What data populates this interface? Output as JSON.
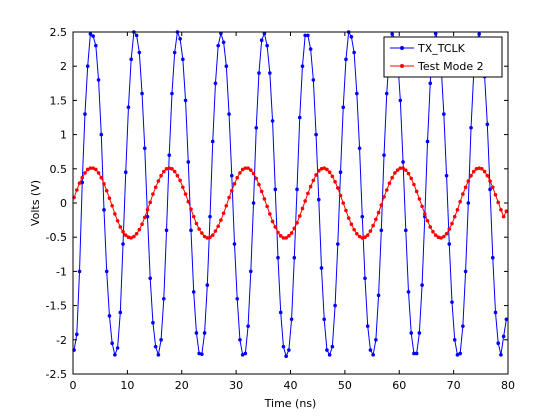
{
  "chart_data": {
    "type": "line",
    "xlabel": "Time (ns)",
    "ylabel": "Volts (V)",
    "xlim": [
      0,
      80
    ],
    "ylim": [
      -2.5,
      2.5
    ],
    "x_ticks": [
      "0",
      "10",
      "20",
      "30",
      "40",
      "50",
      "60",
      "70",
      "80"
    ],
    "y_ticks": [
      "-2.5",
      "-2",
      "-1.5",
      "-1",
      "-0.5",
      "0",
      "0.5",
      "1",
      "1.5",
      "2",
      "2.5"
    ],
    "grid": false,
    "legend_position": "top-right",
    "series": [
      {
        "name": "TX_TCLK",
        "color": "#0000ff",
        "marker": "dot",
        "x": [
          0.2,
          0.7,
          1.2,
          1.7,
          2.2,
          2.7,
          3.2,
          3.7,
          4.2,
          4.7,
          5.2,
          5.7,
          6.2,
          6.7,
          7.2,
          7.7,
          8.2,
          8.7,
          9.2,
          9.7,
          10.2,
          10.7,
          11.2,
          11.7,
          12.2,
          12.7,
          13.2,
          13.7,
          14.2,
          14.7,
          15.2,
          15.7,
          16.2,
          16.7,
          17.2,
          17.7,
          18.2,
          18.7,
          19.2,
          19.7,
          20.2,
          20.7,
          21.2,
          21.7,
          22.2,
          22.7,
          23.2,
          23.7,
          24.2,
          24.7,
          25.2,
          25.7,
          26.2,
          26.7,
          27.2,
          27.7,
          28.2,
          28.7,
          29.2,
          29.7,
          30.2,
          30.7,
          31.2,
          31.7,
          32.2,
          32.7,
          33.2,
          33.7,
          34.2,
          34.7,
          35.2,
          35.7,
          36.2,
          36.7,
          37.2,
          37.7,
          38.2,
          38.7,
          39.2,
          39.7,
          40.2,
          40.7,
          41.2,
          41.7,
          42.2,
          42.7,
          43.2,
          43.7,
          44.2,
          44.7,
          45.2,
          45.7,
          46.2,
          46.7,
          47.2,
          47.7,
          48.2,
          48.7,
          49.2,
          49.7,
          50.2,
          50.7,
          51.2,
          51.7,
          52.2,
          52.7,
          53.2,
          53.7,
          54.2,
          54.7,
          55.2,
          55.7,
          56.2,
          56.7,
          57.2,
          57.7,
          58.2,
          58.7,
          59.2,
          59.7,
          60.2,
          60.7,
          61.2,
          61.7,
          62.2,
          62.7,
          63.2,
          63.7,
          64.2,
          64.7,
          65.2,
          65.7,
          66.2,
          66.7,
          67.2,
          67.7,
          68.2,
          68.7,
          69.2,
          69.7,
          70.2,
          70.7,
          71.2,
          71.7,
          72.2,
          72.7,
          73.2,
          73.7,
          74.2,
          74.7,
          75.2,
          75.7,
          76.2,
          76.7,
          77.2,
          77.7,
          78.2,
          78.7,
          79.2,
          79.7
        ],
        "y": [
          -2.15,
          -1.92,
          -1.0,
          0.3,
          1.3,
          2.0,
          2.47,
          2.44,
          2.3,
          1.8,
          1.0,
          -0.1,
          -1.0,
          -1.65,
          -2.05,
          -2.22,
          -2.12,
          -1.6,
          -0.6,
          0.45,
          1.4,
          2.1,
          2.5,
          2.45,
          2.2,
          1.6,
          0.8,
          -0.2,
          -1.1,
          -1.75,
          -2.1,
          -2.22,
          -2.0,
          -1.4,
          -0.4,
          0.7,
          1.6,
          2.2,
          2.5,
          2.4,
          2.1,
          1.5,
          0.6,
          -0.4,
          -1.3,
          -1.9,
          -2.2,
          -2.21,
          -1.9,
          -1.2,
          -0.2,
          0.9,
          1.75,
          2.3,
          2.48,
          2.35,
          2.0,
          1.3,
          0.4,
          -0.6,
          -1.4,
          -2.0,
          -2.22,
          -2.2,
          -1.8,
          -1.0,
          0.0,
          1.1,
          1.9,
          2.38,
          2.48,
          2.3,
          1.9,
          1.2,
          0.2,
          -0.8,
          -1.6,
          -2.1,
          -2.24,
          -2.15,
          -1.7,
          -0.8,
          0.2,
          1.25,
          2.0,
          2.45,
          2.45,
          2.25,
          1.8,
          1.0,
          0.05,
          -0.95,
          -1.7,
          -2.15,
          -2.22,
          -2.1,
          -1.5,
          -0.6,
          0.45,
          1.4,
          2.1,
          2.5,
          2.43,
          2.2,
          1.6,
          0.8,
          -0.2,
          -1.1,
          -1.8,
          -2.15,
          -2.22,
          -2.0,
          -1.35,
          -0.4,
          0.7,
          1.6,
          2.2,
          2.47,
          2.4,
          2.1,
          1.5,
          0.6,
          -0.4,
          -1.3,
          -1.9,
          -2.2,
          -2.2,
          -1.9,
          -1.2,
          -0.2,
          0.9,
          1.75,
          2.3,
          2.48,
          2.35,
          2.0,
          1.3,
          0.4,
          -0.6,
          -1.45,
          -2.0,
          -2.22,
          -2.2,
          -1.8,
          -1.0,
          0.0,
          1.1,
          1.9,
          2.38,
          2.47,
          2.3,
          1.85,
          1.15,
          0.2,
          -0.8,
          -1.6,
          -2.05,
          -2.22,
          -1.95,
          -1.7
        ]
      },
      {
        "name": "Test Mode 2",
        "color": "#ff0000",
        "marker": "dot",
        "x": [
          0.2,
          0.7,
          1.2,
          1.7,
          2.2,
          2.7,
          3.2,
          3.7,
          4.2,
          4.7,
          5.2,
          5.7,
          6.2,
          6.7,
          7.2,
          7.7,
          8.2,
          8.7,
          9.2,
          9.7,
          10.2,
          10.7,
          11.2,
          11.7,
          12.2,
          12.7,
          13.2,
          13.7,
          14.2,
          14.7,
          15.2,
          15.7,
          16.2,
          16.7,
          17.2,
          17.7,
          18.2,
          18.7,
          19.2,
          19.7,
          20.2,
          20.7,
          21.2,
          21.7,
          22.2,
          22.7,
          23.2,
          23.7,
          24.2,
          24.7,
          25.2,
          25.7,
          26.2,
          26.7,
          27.2,
          27.7,
          28.2,
          28.7,
          29.2,
          29.7,
          30.2,
          30.7,
          31.2,
          31.7,
          32.2,
          32.7,
          33.2,
          33.7,
          34.2,
          34.7,
          35.2,
          35.7,
          36.2,
          36.7,
          37.2,
          37.7,
          38.2,
          38.7,
          39.2,
          39.7,
          40.2,
          40.7,
          41.2,
          41.7,
          42.2,
          42.7,
          43.2,
          43.7,
          44.2,
          44.7,
          45.2,
          45.7,
          46.2,
          46.7,
          47.2,
          47.7,
          48.2,
          48.7,
          49.2,
          49.7,
          50.2,
          50.7,
          51.2,
          51.7,
          52.2,
          52.7,
          53.2,
          53.7,
          54.2,
          54.7,
          55.2,
          55.7,
          56.2,
          56.7,
          57.2,
          57.7,
          58.2,
          58.7,
          59.2,
          59.7,
          60.2,
          60.7,
          61.2,
          61.7,
          62.2,
          62.7,
          63.2,
          63.7,
          64.2,
          64.7,
          65.2,
          65.7,
          66.2,
          66.7,
          67.2,
          67.7,
          68.2,
          68.7,
          69.2,
          69.7,
          70.2,
          70.7,
          71.2,
          71.7,
          72.2,
          72.7,
          73.2,
          73.7,
          74.2,
          74.7,
          75.2,
          75.7,
          76.2,
          76.7,
          77.2,
          77.7,
          78.2,
          78.7,
          79.2,
          79.7
        ],
        "y": [
          0.08,
          0.19,
          0.29,
          0.37,
          0.44,
          0.49,
          0.51,
          0.51,
          0.49,
          0.44,
          0.37,
          0.28,
          0.18,
          0.07,
          -0.04,
          -0.16,
          -0.26,
          -0.35,
          -0.42,
          -0.47,
          -0.5,
          -0.51,
          -0.49,
          -0.45,
          -0.39,
          -0.31,
          -0.21,
          -0.1,
          0.01,
          0.13,
          0.23,
          0.32,
          0.4,
          0.46,
          0.5,
          0.51,
          0.5,
          0.46,
          0.4,
          0.33,
          0.23,
          0.13,
          0.02,
          -0.09,
          -0.2,
          -0.3,
          -0.38,
          -0.44,
          -0.49,
          -0.51,
          -0.5,
          -0.47,
          -0.41,
          -0.34,
          -0.25,
          -0.15,
          -0.04,
          0.08,
          0.18,
          0.28,
          0.37,
          0.44,
          0.49,
          0.51,
          0.51,
          0.48,
          0.43,
          0.36,
          0.27,
          0.17,
          0.06,
          -0.05,
          -0.16,
          -0.27,
          -0.35,
          -0.43,
          -0.48,
          -0.51,
          -0.51,
          -0.48,
          -0.44,
          -0.37,
          -0.29,
          -0.19,
          -0.08,
          0.03,
          0.14,
          0.24,
          0.33,
          0.41,
          0.47,
          0.5,
          0.51,
          0.49,
          0.45,
          0.39,
          0.31,
          0.22,
          0.11,
          0.0,
          -0.11,
          -0.22,
          -0.31,
          -0.39,
          -0.45,
          -0.49,
          -0.51,
          -0.5,
          -0.47,
          -0.41,
          -0.33,
          -0.24,
          -0.14,
          -0.03,
          0.09,
          0.19,
          0.29,
          0.37,
          0.44,
          0.48,
          0.51,
          0.51,
          0.48,
          0.43,
          0.36,
          0.27,
          0.17,
          0.06,
          -0.05,
          -0.16,
          -0.26,
          -0.35,
          -0.42,
          -0.47,
          -0.5,
          -0.51,
          -0.49,
          -0.45,
          -0.38,
          -0.3,
          -0.2,
          -0.1,
          0.02,
          0.13,
          0.23,
          0.32,
          0.4,
          0.46,
          0.5,
          0.51,
          0.5,
          0.46,
          0.4,
          0.32,
          0.23,
          0.12,
          0.01,
          -0.1,
          -0.2,
          -0.12
        ]
      }
    ]
  }
}
